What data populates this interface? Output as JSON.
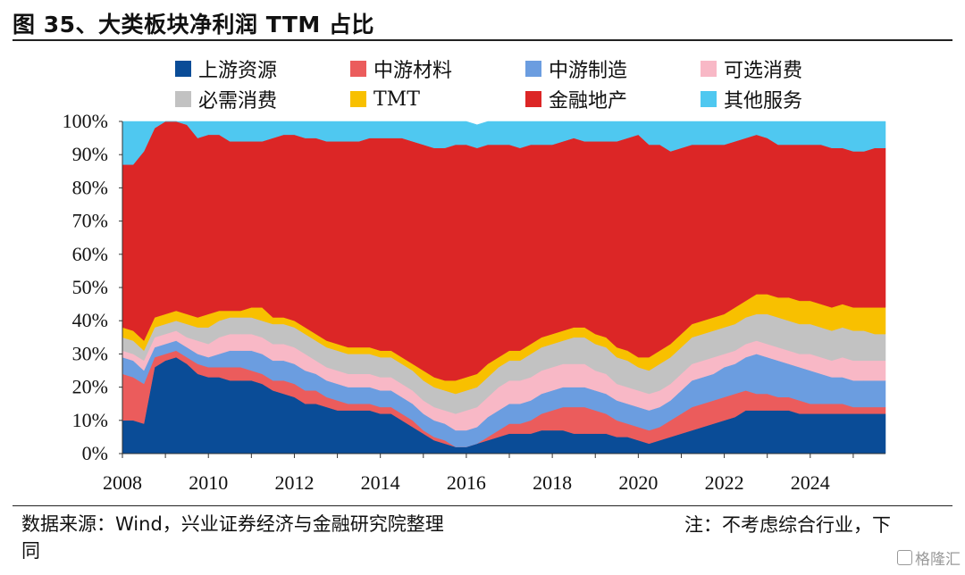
{
  "title": "图 35、大类板块净利润 TTM 占比",
  "footer": {
    "source": "数据来源：Wind，兴业证券经济与金融研究院整理",
    "source_cont": "同",
    "note": "注：不考虑综合行业，下",
    "watermark": "格隆汇"
  },
  "chart_data": {
    "type": "area",
    "stacked": true,
    "title": "图 35、大类板块净利润 TTM 占比",
    "xlabel": "",
    "ylabel": "",
    "xlim": [
      2008.0,
      2025.75
    ],
    "ylim": [
      0,
      100
    ],
    "x_ticks": [
      2008,
      2010,
      2012,
      2014,
      2016,
      2018,
      2020,
      2022,
      2024
    ],
    "y_ticks": [
      "0%",
      "10%",
      "20%",
      "30%",
      "40%",
      "50%",
      "60%",
      "70%",
      "80%",
      "90%",
      "100%"
    ],
    "legend_position": "top",
    "grid": false,
    "x": [
      2008.0,
      2008.25,
      2008.5,
      2008.75,
      2009.0,
      2009.25,
      2009.5,
      2009.75,
      2010.0,
      2010.25,
      2010.5,
      2010.75,
      2011.0,
      2011.25,
      2011.5,
      2011.75,
      2012.0,
      2012.25,
      2012.5,
      2012.75,
      2013.0,
      2013.25,
      2013.5,
      2013.75,
      2014.0,
      2014.25,
      2014.5,
      2014.75,
      2015.0,
      2015.25,
      2015.5,
      2015.75,
      2016.0,
      2016.25,
      2016.5,
      2016.75,
      2017.0,
      2017.25,
      2017.5,
      2017.75,
      2018.0,
      2018.25,
      2018.5,
      2018.75,
      2019.0,
      2019.25,
      2019.5,
      2019.75,
      2020.0,
      2020.25,
      2020.5,
      2020.75,
      2021.0,
      2021.25,
      2021.5,
      2021.75,
      2022.0,
      2022.25,
      2022.5,
      2022.75,
      2023.0,
      2023.25,
      2023.5,
      2023.75,
      2024.0,
      2024.25,
      2024.5,
      2024.75,
      2025.0,
      2025.25,
      2025.5,
      2025.75
    ],
    "series": [
      {
        "name": "上游资源",
        "color": "#0a4c97",
        "values": [
          10,
          10,
          9,
          26,
          28,
          29,
          27,
          24,
          23,
          23,
          22,
          22,
          22,
          21,
          19,
          18,
          17,
          15,
          15,
          14,
          13,
          13,
          13,
          13,
          12,
          12,
          10,
          8,
          6,
          4,
          3,
          2,
          2,
          3,
          4,
          5,
          6,
          6,
          6,
          7,
          7,
          7,
          6,
          6,
          6,
          6,
          5,
          5,
          4,
          3,
          4,
          5,
          6,
          7,
          8,
          9,
          10,
          11,
          13,
          13,
          13,
          13,
          13,
          12,
          12,
          12,
          12,
          12,
          12,
          12,
          12,
          12
        ]
      },
      {
        "name": "中游材料",
        "color": "#eb5c5c",
        "values": [
          14,
          13,
          12,
          3,
          2,
          2,
          2,
          3,
          3,
          3,
          4,
          4,
          3,
          3,
          3,
          4,
          4,
          4,
          4,
          3,
          3,
          2,
          2,
          2,
          2,
          2,
          2,
          2,
          1,
          1,
          1,
          0,
          0,
          0,
          1,
          2,
          3,
          3,
          4,
          5,
          6,
          7,
          8,
          8,
          7,
          6,
          5,
          4,
          4,
          4,
          4,
          5,
          6,
          7,
          7,
          7,
          7,
          7,
          6,
          5,
          5,
          4,
          4,
          4,
          3,
          3,
          3,
          3,
          2,
          2,
          2,
          2
        ]
      },
      {
        "name": "中游制造",
        "color": "#6b9de0",
        "values": [
          5,
          5,
          4,
          3,
          3,
          3,
          3,
          3,
          3,
          4,
          5,
          5,
          6,
          6,
          6,
          6,
          6,
          6,
          5,
          5,
          5,
          5,
          5,
          5,
          5,
          5,
          5,
          5,
          5,
          5,
          5,
          5,
          5,
          5,
          6,
          6,
          6,
          6,
          6,
          6,
          6,
          6,
          6,
          6,
          6,
          6,
          6,
          6,
          6,
          6,
          6,
          6,
          7,
          8,
          8,
          8,
          9,
          9,
          10,
          12,
          11,
          11,
          10,
          10,
          10,
          9,
          8,
          8,
          8,
          8,
          8,
          8
        ]
      },
      {
        "name": "可选消费",
        "color": "#f8b8c6",
        "values": [
          2,
          2,
          3,
          3,
          3,
          3,
          3,
          4,
          4,
          5,
          5,
          5,
          5,
          5,
          5,
          5,
          5,
          5,
          4,
          4,
          4,
          4,
          4,
          4,
          4,
          4,
          4,
          4,
          4,
          4,
          4,
          5,
          6,
          6,
          6,
          7,
          7,
          7,
          7,
          7,
          7,
          7,
          7,
          7,
          6,
          6,
          5,
          5,
          5,
          5,
          5,
          5,
          5,
          5,
          5,
          5,
          4,
          4,
          4,
          4,
          4,
          4,
          4,
          4,
          5,
          5,
          5,
          6,
          6,
          6,
          6,
          6
        ]
      },
      {
        "name": "必需消费",
        "color": "#c2c2c2",
        "values": [
          4,
          4,
          3,
          3,
          3,
          3,
          4,
          4,
          5,
          5,
          5,
          5,
          5,
          5,
          6,
          6,
          6,
          6,
          6,
          6,
          6,
          6,
          6,
          6,
          6,
          6,
          6,
          6,
          6,
          6,
          6,
          6,
          6,
          6,
          6,
          6,
          6,
          6,
          7,
          7,
          7,
          7,
          8,
          8,
          8,
          8,
          8,
          8,
          7,
          7,
          8,
          8,
          8,
          8,
          8,
          8,
          8,
          8,
          8,
          8,
          9,
          9,
          9,
          9,
          9,
          9,
          9,
          9,
          9,
          9,
          8,
          8
        ]
      },
      {
        "name": "TMT",
        "color": "#f8c000",
        "values": [
          3,
          3,
          3,
          3,
          3,
          3,
          3,
          3,
          4,
          3,
          2,
          2,
          3,
          4,
          2,
          2,
          2,
          2,
          2,
          2,
          2,
          2,
          2,
          2,
          2,
          2,
          2,
          2,
          3,
          3,
          3,
          4,
          4,
          4,
          4,
          3,
          3,
          3,
          3,
          3,
          3,
          3,
          3,
          3,
          3,
          3,
          3,
          3,
          3,
          4,
          4,
          4,
          4,
          4,
          4,
          4,
          4,
          5,
          5,
          6,
          6,
          6,
          7,
          7,
          7,
          7,
          7,
          7,
          7,
          7,
          8,
          8
        ]
      },
      {
        "name": "金融地产",
        "color": "#dc2626",
        "values": [
          49,
          50,
          57,
          57,
          58,
          57,
          57,
          54,
          54,
          53,
          51,
          51,
          50,
          50,
          54,
          55,
          56,
          57,
          59,
          60,
          61,
          62,
          62,
          63,
          64,
          64,
          66,
          67,
          68,
          69,
          70,
          71,
          70,
          68,
          66,
          64,
          62,
          61,
          60,
          58,
          57,
          57,
          57,
          56,
          58,
          59,
          62,
          64,
          67,
          64,
          62,
          58,
          56,
          54,
          53,
          52,
          51,
          50,
          49,
          48,
          47,
          46,
          46,
          47,
          47,
          48,
          48,
          47,
          47,
          47,
          48,
          48
        ]
      },
      {
        "name": "其他服务",
        "color": "#4fc8f0",
        "values": [
          13,
          13,
          9,
          2,
          0,
          0,
          1,
          5,
          4,
          4,
          6,
          6,
          6,
          6,
          5,
          4,
          4,
          5,
          5,
          6,
          6,
          6,
          6,
          5,
          5,
          5,
          5,
          6,
          7,
          8,
          8,
          7,
          7,
          7,
          7,
          7,
          7,
          8,
          7,
          7,
          7,
          6,
          5,
          6,
          6,
          6,
          6,
          5,
          4,
          7,
          7,
          9,
          8,
          7,
          7,
          7,
          7,
          6,
          5,
          4,
          5,
          7,
          7,
          7,
          7,
          7,
          8,
          8,
          9,
          9,
          8,
          8
        ]
      }
    ]
  }
}
